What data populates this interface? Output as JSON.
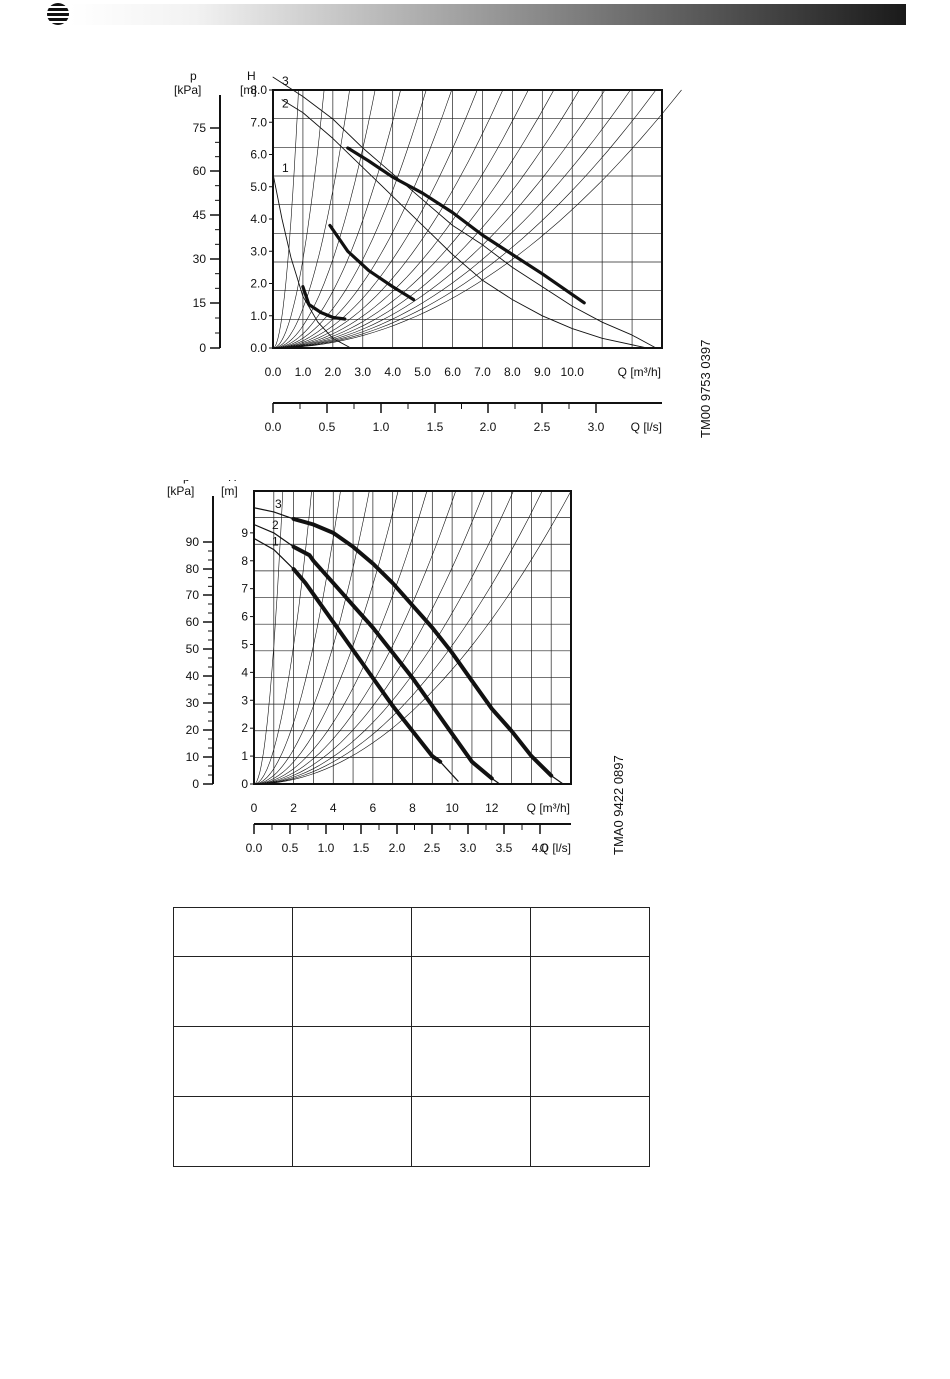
{
  "colors": {
    "ink": "#111111",
    "grid": "#222222",
    "header_dark": "#1a1a1a",
    "header_light": "#ffffff"
  },
  "header": {
    "logo_icon": "striped-globe-icon"
  },
  "chart_data": [
    {
      "type": "line",
      "code": "TM00 9753 0397",
      "ylabel_left": {
        "symbol": "p",
        "unit": "[kPa]",
        "ticks": [
          "75",
          "60",
          "45",
          "30",
          "15",
          "0"
        ]
      },
      "ylabel": {
        "symbol": "H",
        "unit": "[m]"
      },
      "yticks": [
        "8.0",
        "7.0",
        "6.0",
        "5.0",
        "4.0",
        "3.0",
        "2.0",
        "1.0",
        "0.0"
      ],
      "ylim": [
        0,
        8.0
      ],
      "xlabel": "Q [m³/h]",
      "xticks": [
        "0.0",
        "1.0",
        "2.0",
        "3.0",
        "4.0",
        "5.0",
        "6.0",
        "7.0",
        "8.0",
        "9.0",
        "10.0"
      ],
      "xlim": [
        0,
        13.0
      ],
      "xlabel_secondary": "Q [l/s]",
      "xticks_secondary": [
        "0.0",
        "0.5",
        "1.0",
        "1.5",
        "2.0",
        "2.5",
        "3.0"
      ],
      "grid": true,
      "series": [
        {
          "name": "1",
          "role": "speed-thin",
          "x": [
            0.0,
            0.3,
            0.6,
            1.0,
            1.5,
            2.0,
            2.6
          ],
          "y": [
            5.4,
            4.0,
            2.8,
            1.6,
            0.8,
            0.3,
            0.0
          ]
        },
        {
          "name": "2",
          "role": "speed-thin",
          "x": [
            0.3,
            1.0,
            2.0,
            3.0,
            4.0,
            5.0,
            6.0,
            7.0,
            8.0,
            9.0,
            10.0,
            11.0,
            12.5
          ],
          "y": [
            7.7,
            7.3,
            6.5,
            5.6,
            4.7,
            3.8,
            2.9,
            2.1,
            1.5,
            1.0,
            0.6,
            0.3,
            0.0
          ]
        },
        {
          "name": "3",
          "role": "speed-thin",
          "x": [
            0.0,
            1.0,
            2.0,
            3.0,
            4.0,
            5.0,
            6.0,
            7.0,
            8.0,
            9.0,
            10.0,
            11.0,
            12.0,
            12.8
          ],
          "y": [
            8.4,
            7.8,
            7.1,
            6.2,
            5.4,
            4.6,
            3.8,
            3.2,
            2.5,
            1.9,
            1.3,
            0.8,
            0.4,
            0.0
          ]
        },
        {
          "name": "",
          "role": "operating",
          "x": [
            1.0,
            1.2,
            1.6,
            2.0,
            2.4
          ],
          "y": [
            1.9,
            1.35,
            1.1,
            0.95,
            0.9
          ]
        },
        {
          "name": "",
          "role": "operating",
          "x": [
            1.9,
            2.5,
            3.2,
            4.0,
            4.7
          ],
          "y": [
            3.8,
            3.0,
            2.4,
            1.9,
            1.5
          ]
        },
        {
          "name": "",
          "role": "operating",
          "x": [
            2.5,
            3.2,
            4.0,
            5.0,
            6.0,
            7.0,
            8.0,
            9.0,
            10.4
          ],
          "y": [
            6.2,
            5.8,
            5.3,
            4.8,
            4.2,
            3.5,
            2.9,
            2.3,
            1.4
          ]
        }
      ]
    },
    {
      "type": "line",
      "code": "TMA0 9422 0897",
      "ylabel_left": {
        "symbol": "p",
        "unit": "[kPa]",
        "ticks": [
          "90",
          "80",
          "70",
          "60",
          "50",
          "40",
          "30",
          "20",
          "10",
          "0"
        ]
      },
      "ylabel": {
        "symbol": "H",
        "unit": "[m]"
      },
      "yticks": [
        "9",
        "8",
        "7",
        "6",
        "5",
        "4",
        "3",
        "2",
        "1",
        "0"
      ],
      "ylim": [
        0,
        10.5
      ],
      "xlabel": "Q [m³/h]",
      "xticks": [
        "0",
        "2",
        "4",
        "6",
        "8",
        "10",
        "12"
      ],
      "xlim": [
        0,
        16.0
      ],
      "xlabel_secondary": "Q [l/s]",
      "xticks_secondary": [
        "0.0",
        "0.5",
        "1.0",
        "1.5",
        "2.0",
        "2.5",
        "3.0",
        "3.5",
        "4.0"
      ],
      "grid": true,
      "series": [
        {
          "name": "1",
          "role": "speed",
          "x": [
            0.0,
            1.0,
            2.0,
            2.6,
            3.0,
            4.0,
            5.0,
            6.0,
            7.0,
            8.0,
            9.0,
            9.4,
            10.3
          ],
          "y": [
            8.8,
            8.4,
            7.7,
            7.2,
            6.8,
            5.8,
            4.8,
            3.8,
            2.8,
            1.9,
            1.0,
            0.8,
            0.1
          ]
        },
        {
          "name": "2",
          "role": "speed",
          "x": [
            0.0,
            1.0,
            2.0,
            2.8,
            3.0,
            4.0,
            5.0,
            6.0,
            7.0,
            8.0,
            9.0,
            10.0,
            11.0,
            12.0,
            12.4
          ],
          "y": [
            9.3,
            9.0,
            8.5,
            8.2,
            8.0,
            7.2,
            6.4,
            5.6,
            4.7,
            3.8,
            2.8,
            1.8,
            0.8,
            0.2,
            0.0
          ]
        },
        {
          "name": "3",
          "role": "speed",
          "x": [
            0.0,
            1.0,
            2.0,
            3.0,
            4.0,
            5.0,
            6.0,
            7.0,
            8.0,
            9.0,
            10.0,
            11.0,
            12.0,
            13.0,
            14.0,
            15.0,
            15.6
          ],
          "y": [
            9.9,
            9.75,
            9.5,
            9.3,
            9.0,
            8.5,
            7.9,
            7.2,
            6.4,
            5.6,
            4.7,
            3.7,
            2.7,
            1.9,
            1.0,
            0.3,
            0.0
          ]
        }
      ]
    }
  ],
  "table": {
    "columns": 4,
    "rows": [
      [
        "",
        "",
        "",
        ""
      ],
      [
        "",
        "",
        "",
        ""
      ],
      [
        "",
        "",
        "",
        ""
      ],
      [
        "",
        "",
        "",
        ""
      ]
    ]
  }
}
